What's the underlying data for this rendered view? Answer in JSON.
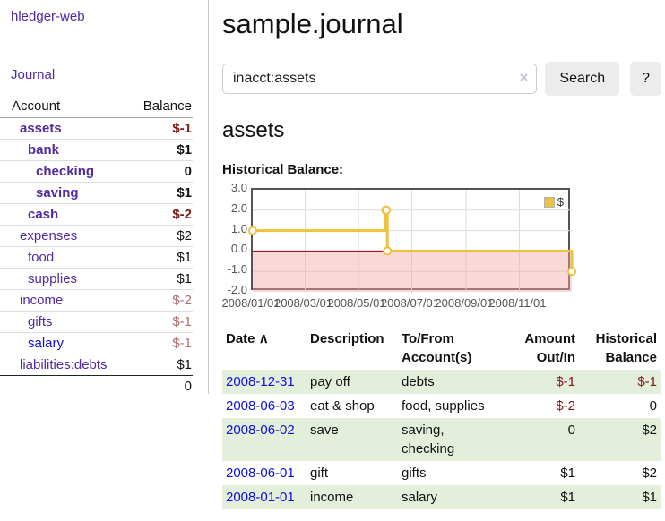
{
  "sidebar": {
    "app_title": "hledger-web",
    "journal_link": "Journal",
    "account_header": "Account",
    "balance_header": "Balance",
    "accounts": [
      {
        "name": "assets",
        "depth": 0,
        "bold": true,
        "balance": "$-1"
      },
      {
        "name": "bank",
        "depth": 1,
        "bold": true,
        "balance": "$1"
      },
      {
        "name": "checking",
        "depth": 2,
        "bold": true,
        "balance": "0"
      },
      {
        "name": "saving",
        "depth": 2,
        "bold": true,
        "balance": "$1"
      },
      {
        "name": "cash",
        "depth": 1,
        "bold": true,
        "balance": "$-2"
      },
      {
        "name": "expenses",
        "depth": 0,
        "bold": false,
        "balance": "$2"
      },
      {
        "name": "food",
        "depth": 1,
        "bold": false,
        "balance": "$1"
      },
      {
        "name": "supplies",
        "depth": 1,
        "bold": false,
        "balance": "$1"
      },
      {
        "name": "income",
        "depth": 0,
        "bold": false,
        "balance": "$-2"
      },
      {
        "name": "gifts",
        "depth": 1,
        "bold": false,
        "balance": "$-1"
      },
      {
        "name": "salary",
        "depth": 1,
        "bold": false,
        "balance": "$-1",
        "unvisited": true
      },
      {
        "name": "liabilities:debts",
        "depth": 0,
        "bold": false,
        "balance": "$1"
      }
    ],
    "total": "0"
  },
  "main": {
    "title": "sample.journal",
    "account_heading": "assets"
  },
  "search": {
    "value": "inacct:assets",
    "clear_icon": "×",
    "button_label": "Search",
    "help_label": "?"
  },
  "chart_data": {
    "type": "line",
    "step": true,
    "title": "Historical Balance:",
    "legend": {
      "position": "top-right",
      "label": "$"
    },
    "series": [
      {
        "name": "$",
        "color": "#edc240",
        "x": [
          "2008-01-01",
          "2008-06-01",
          "2008-06-02",
          "2008-06-03",
          "2008-12-31"
        ],
        "x_days": [
          0,
          152,
          153,
          154,
          365
        ],
        "y": [
          1,
          2,
          2,
          0,
          -1
        ]
      }
    ],
    "ylim": [
      -2,
      3
    ],
    "yticks": [
      3.0,
      2.0,
      1.0,
      0.0,
      -1.0,
      -2.0
    ],
    "ytick_labels": [
      "3.0",
      "2.0",
      "1.0",
      "0.0",
      "-1.0",
      "-2.0"
    ],
    "xlim_days": [
      0,
      365
    ],
    "xtick_days": [
      0,
      60,
      121,
      182,
      244,
      305
    ],
    "xtick_labels": [
      "2008/01/01",
      "2008/03/01",
      "2008/05/01",
      "2008/07/01",
      "2008/09/01",
      "2008/11/01"
    ],
    "grid": true,
    "negative_region_color": "#fbdcdc",
    "zero_line_color": "#8b0000"
  },
  "register": {
    "columns": [
      "Date",
      "Description",
      "To/From Account(s)",
      "Amount Out/In",
      "Historical Balance"
    ],
    "sort_icon": "∧",
    "rows": [
      {
        "date": "2008-12-31",
        "description": "pay off",
        "to_from": "debts",
        "amount": "$-1",
        "balance": "$-1"
      },
      {
        "date": "2008-06-03",
        "description": "eat & shop",
        "to_from": "food, supplies",
        "amount": "$-2",
        "balance": "0"
      },
      {
        "date": "2008-06-02",
        "description": "save",
        "to_from": "saving,\nchecking",
        "amount": "0",
        "balance": "$2"
      },
      {
        "date": "2008-06-01",
        "description": "gift",
        "to_from": "gifts",
        "amount": "$1",
        "balance": "$2"
      },
      {
        "date": "2008-01-01",
        "description": "income",
        "to_from": "salary",
        "amount": "$1",
        "balance": "$1"
      }
    ]
  },
  "colors": {
    "link_purple": "#5229a3",
    "link_blue": "#0f0fdd",
    "negative_red": "#801818",
    "negative_faded": "#b26e6e",
    "row_stripe_green": "#e3eedb",
    "series_yellow": "#edc240"
  }
}
